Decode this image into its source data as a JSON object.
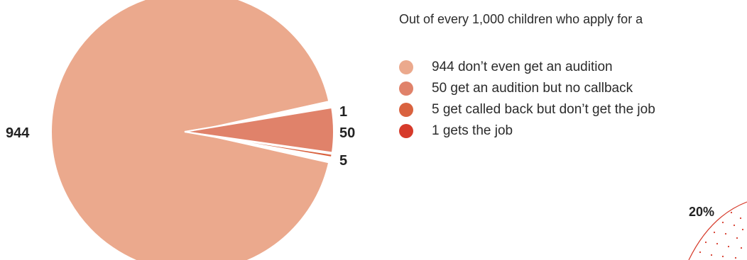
{
  "intro_text": "Out of every 1,000 children who apply for a",
  "chart_data": {
    "type": "pie",
    "total": 1000,
    "slices": [
      {
        "value": 944,
        "label": "944",
        "legend": "944 don’t even get an audition",
        "color": "#eba98d"
      },
      {
        "value": 50,
        "label": "50",
        "legend": "50 get an audition but no callback",
        "color": "#e0826a"
      },
      {
        "value": 5,
        "label": "5",
        "legend": "5 get called back but don’t get the job",
        "color": "#d9623f"
      },
      {
        "value": 1,
        "label": "1",
        "legend": "1 gets the job",
        "color": "#d63a2a"
      }
    ],
    "legend_position": "right"
  },
  "decoration": {
    "label": "20%",
    "color": "#d63a2a"
  }
}
